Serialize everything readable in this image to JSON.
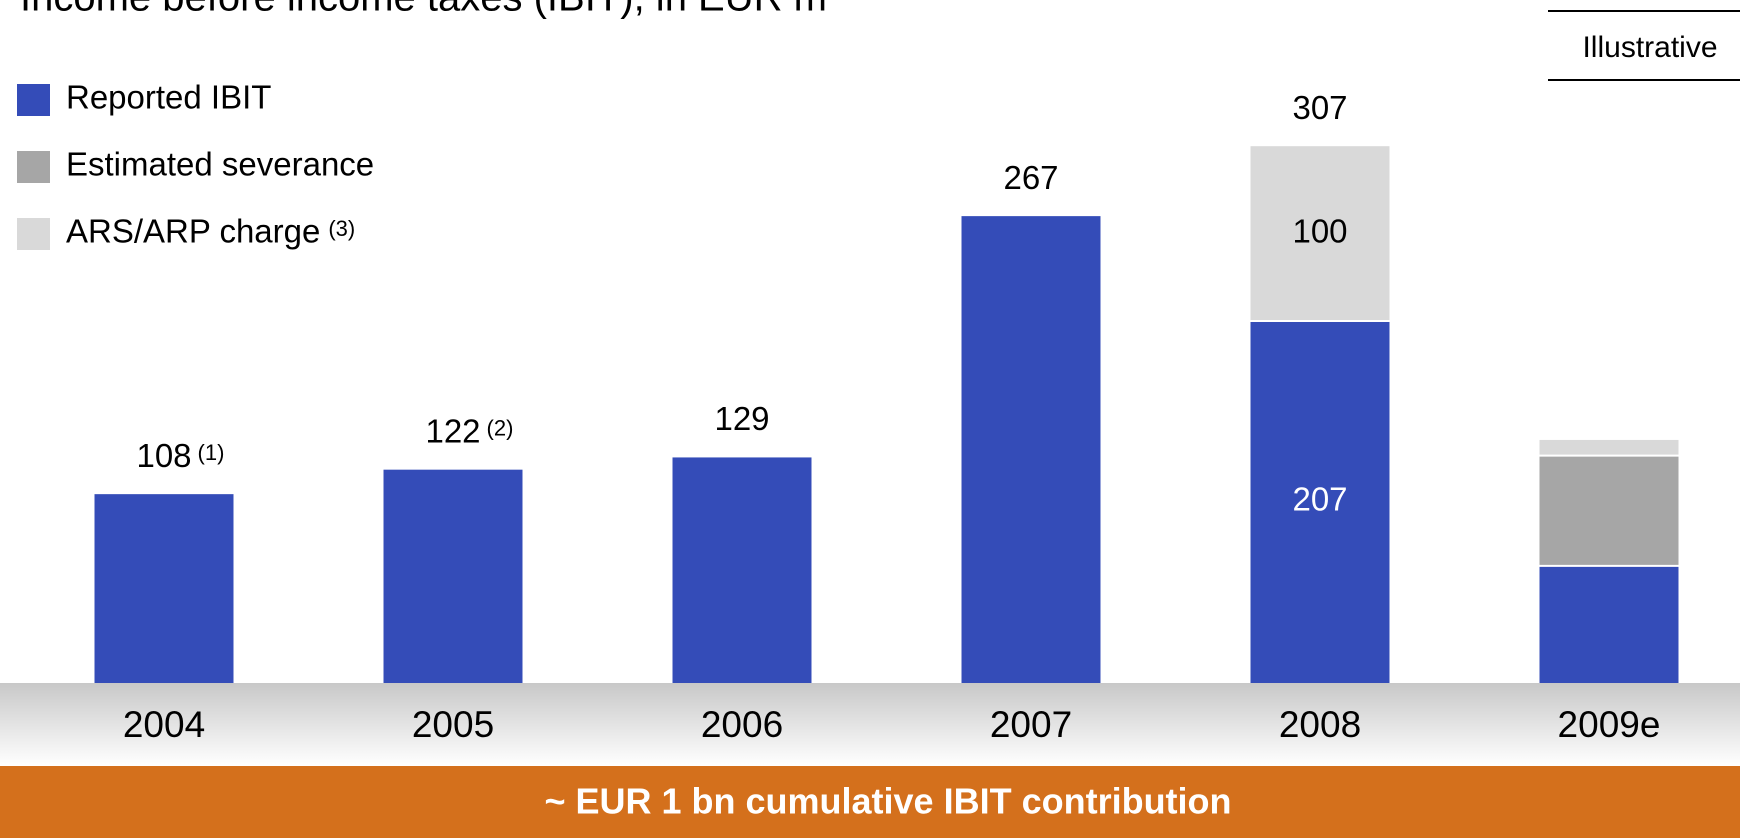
{
  "chart_data": {
    "type": "stacked_bar",
    "title": "Income before income taxes (IBIT), in EUR m",
    "tag": "Illustrative",
    "banner": "~ EUR 1 bn cumulative IBIT contribution",
    "categories": [
      "2004",
      "2005",
      "2006",
      "2007",
      "2008",
      "2009e"
    ],
    "series": [
      {
        "name": "Reported IBIT",
        "color": "#344cb8",
        "values": [
          108,
          122,
          129,
          267,
          207,
          67
        ]
      },
      {
        "name": "Estimated severance",
        "color": "#a6a6a6",
        "values": [
          null,
          null,
          null,
          null,
          null,
          63
        ]
      },
      {
        "name": "ARS/ARP charge",
        "note": "(3)",
        "color": "#d9d9d9",
        "values": [
          null,
          null,
          null,
          null,
          100,
          9
        ]
      }
    ],
    "totals": [
      108,
      122,
      129,
      267,
      307,
      null
    ],
    "total_notes": [
      "(1)",
      "(2)",
      null,
      null,
      null,
      null
    ],
    "ylim": [
      0,
      350
    ]
  }
}
